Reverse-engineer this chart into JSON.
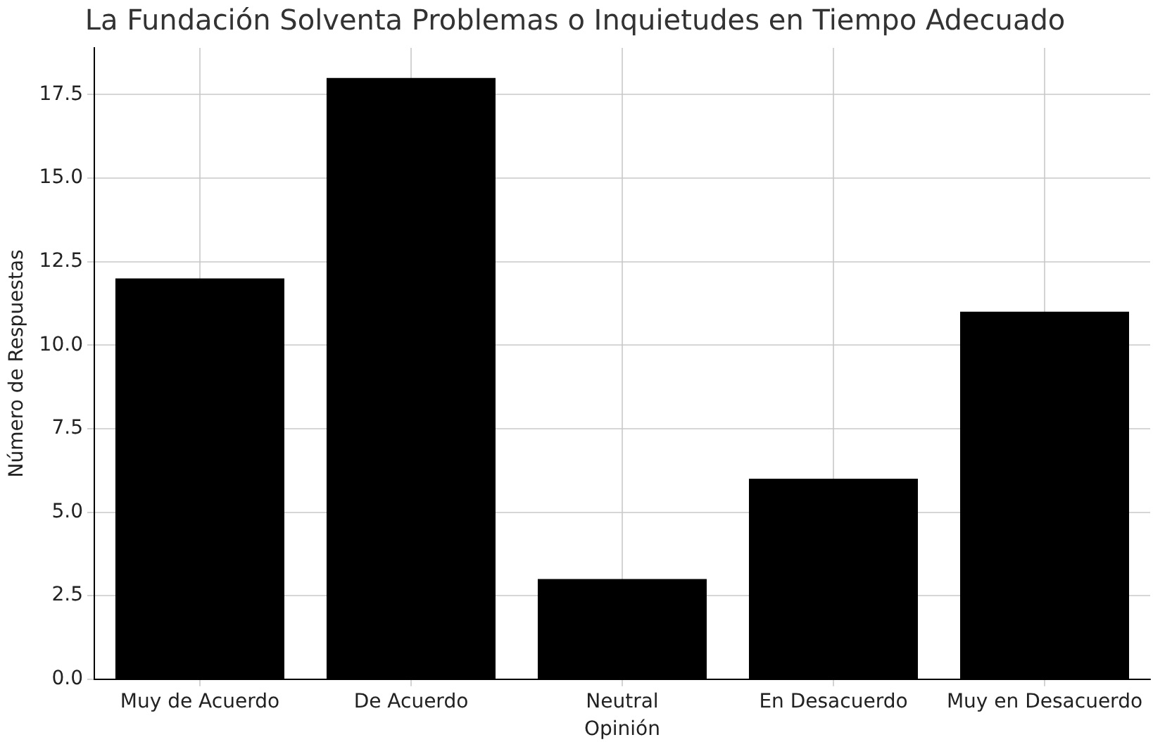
{
  "chart_data": {
    "type": "bar",
    "title": "La Fundación Solventa Problemas o Inquietudes en Tiempo Adecuado",
    "xlabel": "Opinión",
    "ylabel": "Número de Respuestas",
    "categories": [
      "Muy de Acuerdo",
      "De Acuerdo",
      "Neutral",
      "En Desacuerdo",
      "Muy en Desacuerdo"
    ],
    "values": [
      12,
      18,
      3,
      6,
      11
    ],
    "color": "#000000",
    "ylim": [
      0,
      18.9
    ],
    "yticks": [
      {
        "value": 0,
        "label": "0.0"
      },
      2.5,
      {
        "value": 5,
        "label": "5.0"
      },
      7.5,
      {
        "value": 10,
        "label": "10.0"
      },
      12.5,
      {
        "value": 15,
        "label": "15.0"
      },
      17.5
    ],
    "grid": true
  }
}
